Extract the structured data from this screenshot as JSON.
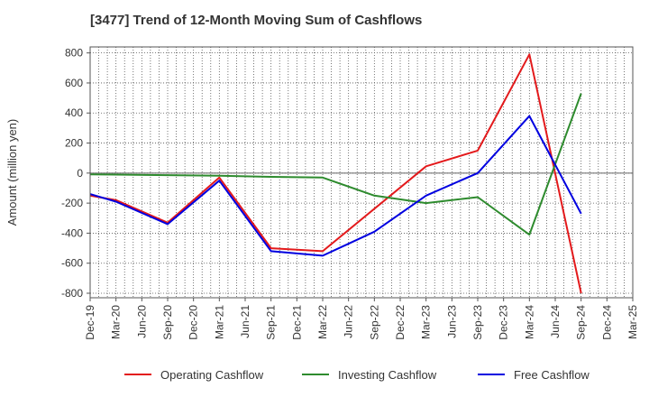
{
  "chart_data": {
    "type": "line",
    "title": "[3477]  Trend of 12-Month Moving Sum of Cashflows",
    "ylabel": "Amount (million yen)",
    "xlabel": "",
    "categories": [
      "Dec-19",
      "Mar-20",
      "Jun-20",
      "Sep-20",
      "Dec-20",
      "Mar-21",
      "Jun-21",
      "Sep-21",
      "Dec-21",
      "Mar-22",
      "Jun-22",
      "Sep-22",
      "Dec-22",
      "Mar-23",
      "Jun-23",
      "Sep-23",
      "Dec-23",
      "Mar-24",
      "Jun-24",
      "Sep-24",
      "Dec-24",
      "Mar-25"
    ],
    "ylim": [
      -830,
      840
    ],
    "yticks": [
      800,
      600,
      400,
      200,
      0,
      -200,
      -400,
      -600,
      -800
    ],
    "grid": true,
    "legend_position": "bottom",
    "series": [
      {
        "name": "Operating Cashflow",
        "color": "#e31a1c",
        "values": [
          -150,
          -180,
          null,
          -330,
          null,
          -30,
          null,
          -500,
          null,
          -520,
          null,
          null,
          null,
          45,
          null,
          150,
          null,
          790,
          null,
          -800,
          null,
          null
        ]
      },
      {
        "name": "Investing Cashflow",
        "color": "#2e8b2e",
        "values": [
          -8,
          null,
          null,
          null,
          null,
          -18,
          null,
          -25,
          null,
          -30,
          null,
          -150,
          null,
          -200,
          null,
          -160,
          null,
          -410,
          null,
          530,
          null,
          null
        ]
      },
      {
        "name": "Free Cashflow",
        "color": "#0000e0",
        "values": [
          -140,
          -190,
          null,
          -340,
          null,
          -50,
          null,
          -520,
          null,
          -550,
          null,
          -390,
          null,
          -150,
          null,
          0,
          null,
          380,
          null,
          -270,
          null,
          null
        ]
      }
    ]
  }
}
